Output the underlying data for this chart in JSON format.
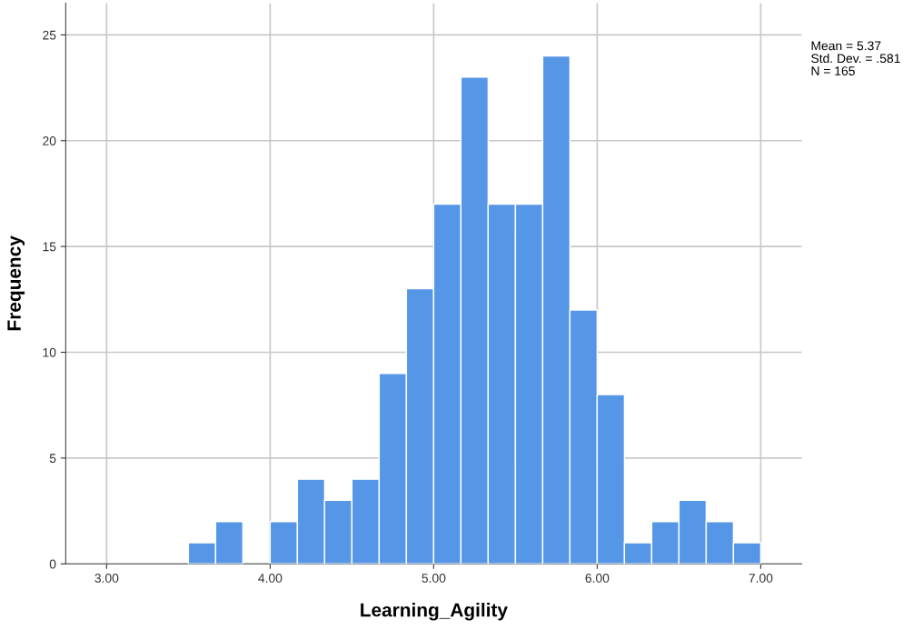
{
  "chart_data": {
    "type": "histogram",
    "xlabel": "Learning_Agility",
    "ylabel": "Frequency",
    "bins": [
      3.5,
      3.6667,
      3.8333,
      4.0,
      4.1667,
      4.3333,
      4.5,
      4.6667,
      4.8333,
      5.0,
      5.1667,
      5.3333,
      5.5,
      5.6667,
      5.8333,
      6.0,
      6.1667,
      6.3333,
      6.5,
      6.6667,
      6.8333,
      7.0
    ],
    "values": [
      1,
      2,
      0,
      2,
      4,
      3,
      4,
      9,
      13,
      17,
      23,
      17,
      17,
      24,
      12,
      8,
      1,
      2,
      3,
      2,
      1
    ],
    "color": "#5596e6",
    "xlim": [
      2.75,
      7.25
    ],
    "ylim": [
      0,
      26.5
    ],
    "xticks": [
      {
        "value": 3,
        "label": "3.00"
      },
      {
        "value": 4,
        "label": "4.00"
      },
      {
        "value": 5,
        "label": "5.00"
      },
      {
        "value": 6,
        "label": "6.00"
      },
      {
        "value": 7,
        "label": "7.00"
      }
    ],
    "yticks": [
      0,
      5,
      10,
      15,
      20,
      25
    ],
    "grid": true,
    "annotations": [
      "Mean = 5.37",
      "Std. Dev. = .581",
      "N = 165"
    ]
  }
}
